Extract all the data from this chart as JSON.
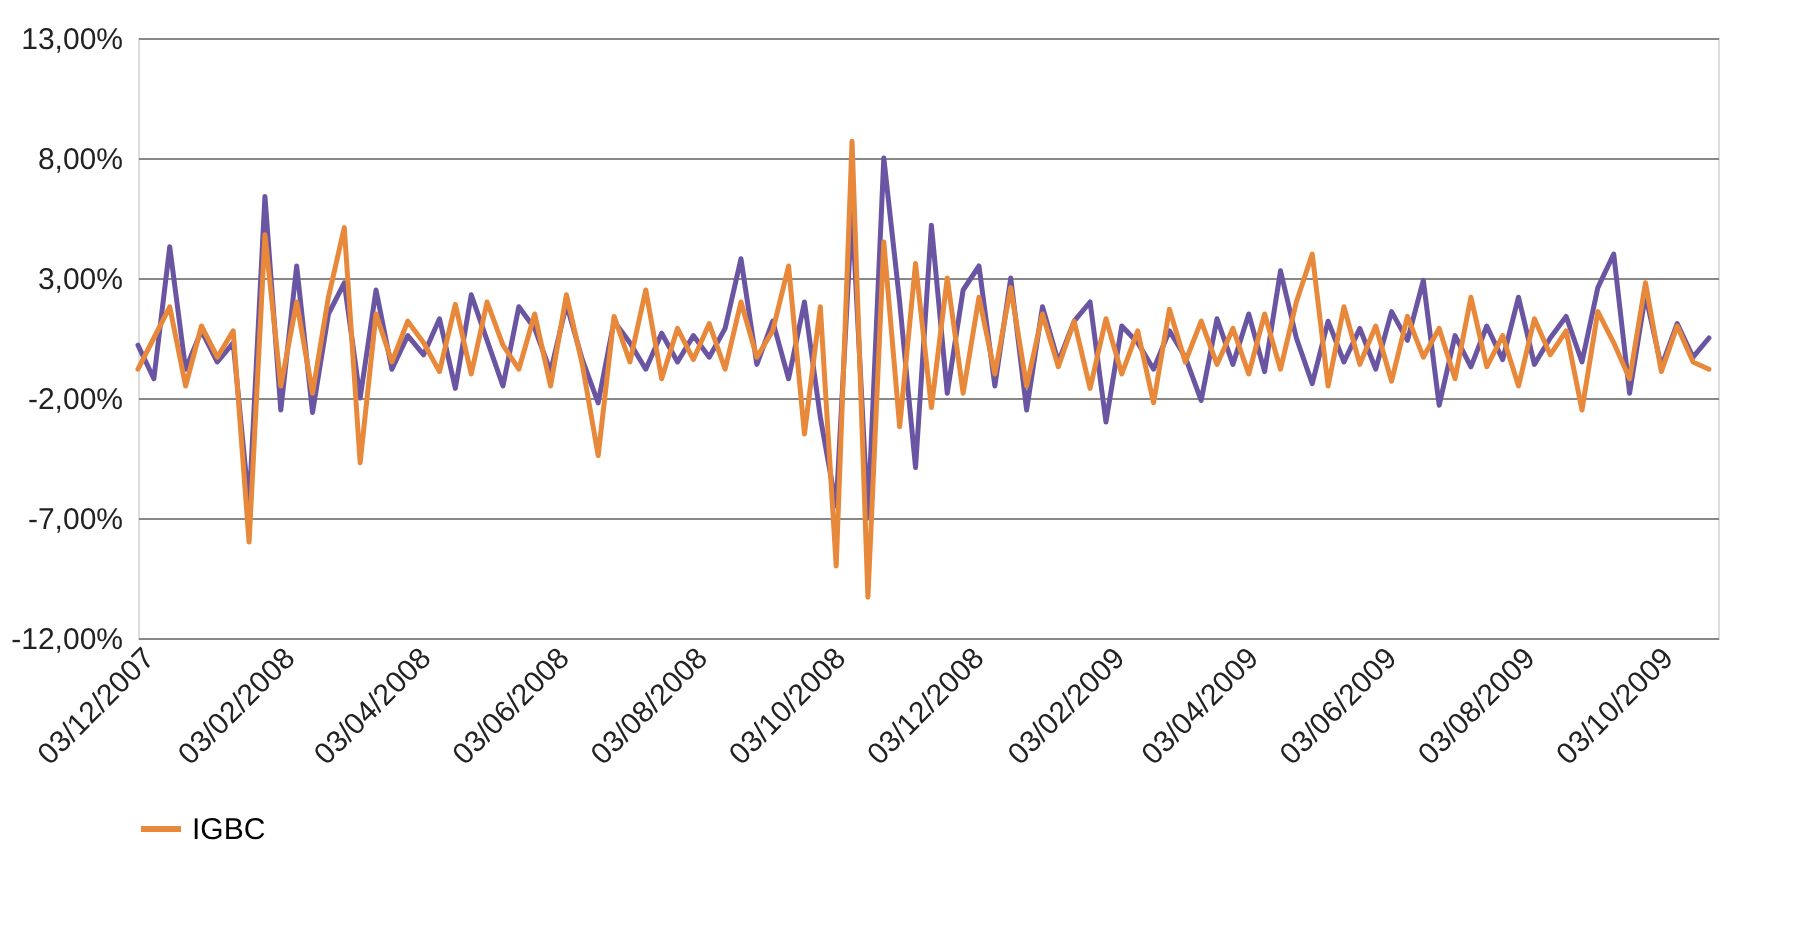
{
  "chart_data": {
    "type": "line",
    "x": [
      "2007-12-03",
      "2007-12-10",
      "2007-12-17",
      "2007-12-24",
      "2007-12-31",
      "2008-01-07",
      "2008-01-14",
      "2008-01-21",
      "2008-01-28",
      "2008-02-04",
      "2008-02-11",
      "2008-02-18",
      "2008-02-25",
      "2008-03-03",
      "2008-03-10",
      "2008-03-17",
      "2008-03-24",
      "2008-03-31",
      "2008-04-07",
      "2008-04-14",
      "2008-04-21",
      "2008-04-28",
      "2008-05-05",
      "2008-05-12",
      "2008-05-19",
      "2008-05-26",
      "2008-06-02",
      "2008-06-09",
      "2008-06-16",
      "2008-06-23",
      "2008-06-30",
      "2008-07-07",
      "2008-07-14",
      "2008-07-21",
      "2008-07-28",
      "2008-08-04",
      "2008-08-11",
      "2008-08-18",
      "2008-08-25",
      "2008-09-01",
      "2008-09-08",
      "2008-09-15",
      "2008-09-22",
      "2008-09-29",
      "2008-10-06",
      "2008-10-13",
      "2008-10-20",
      "2008-10-27",
      "2008-11-03",
      "2008-11-10",
      "2008-11-17",
      "2008-11-24",
      "2008-12-01",
      "2008-12-08",
      "2008-12-15",
      "2008-12-22",
      "2008-12-29",
      "2009-01-05",
      "2009-01-12",
      "2009-01-19",
      "2009-01-26",
      "2009-02-02",
      "2009-02-09",
      "2009-02-16",
      "2009-02-23",
      "2009-03-02",
      "2009-03-09",
      "2009-03-16",
      "2009-03-23",
      "2009-03-30",
      "2009-04-06",
      "2009-04-13",
      "2009-04-20",
      "2009-04-27",
      "2009-05-04",
      "2009-05-11",
      "2009-05-18",
      "2009-05-25",
      "2009-06-01",
      "2009-06-08",
      "2009-06-15",
      "2009-06-22",
      "2009-06-29",
      "2009-07-06",
      "2009-07-13",
      "2009-07-20",
      "2009-07-27",
      "2009-08-03",
      "2009-08-10",
      "2009-08-17",
      "2009-08-24",
      "2009-08-31",
      "2009-09-07",
      "2009-09-14",
      "2009-09-21",
      "2009-09-28",
      "2009-10-05",
      "2009-10-12",
      "2009-10-19",
      "2009-10-26"
    ],
    "series": [
      {
        "color": "#6a55a3",
        "values": [
          0.2,
          -1.2,
          4.3,
          -0.8,
          0.8,
          -0.5,
          0.3,
          -6.5,
          6.4,
          -2.5,
          3.5,
          -2.6,
          1.5,
          2.8,
          -2.0,
          2.5,
          -0.8,
          0.6,
          -0.2,
          1.3,
          -1.6,
          2.3,
          0.4,
          -1.5,
          1.8,
          0.9,
          -0.9,
          1.9,
          -0.4,
          -2.2,
          1.2,
          0.3,
          -0.8,
          0.7,
          -0.5,
          0.6,
          -0.3,
          0.9,
          3.8,
          -0.6,
          1.2,
          -1.2,
          2.0,
          -2.8,
          -6.5,
          5.8,
          -7.0,
          8.0,
          2.0,
          -4.9,
          5.2,
          -1.8,
          2.5,
          3.5,
          -1.5,
          3.0,
          -2.5,
          1.8,
          -0.5,
          1.2,
          2.0,
          -3.0,
          1.0,
          0.3,
          -0.8,
          0.8,
          -0.3,
          -2.1,
          1.3,
          -0.6,
          1.5,
          -0.9,
          3.3,
          0.5,
          -1.4,
          1.2,
          -0.5,
          0.9,
          -0.8,
          1.6,
          0.4,
          2.9,
          -2.3,
          0.6,
          -0.7,
          1.0,
          -0.4,
          2.2,
          -0.6,
          0.5,
          1.4,
          -0.5,
          2.6,
          4.0,
          -1.8,
          2.3,
          -0.7,
          1.1,
          -0.3,
          0.5
        ]
      },
      {
        "name": "IGBC",
        "color": "#e8883a",
        "values": [
          -0.8,
          0.5,
          1.8,
          -1.5,
          1.0,
          -0.3,
          0.8,
          -8.0,
          4.8,
          -1.5,
          2.0,
          -1.8,
          2.2,
          5.1,
          -4.7,
          1.5,
          -0.5,
          1.2,
          0.3,
          -0.9,
          1.9,
          -1.0,
          2.0,
          0.2,
          -0.8,
          1.5,
          -1.5,
          2.3,
          -0.6,
          -4.4,
          1.4,
          -0.5,
          2.5,
          -1.2,
          0.9,
          -0.4,
          1.1,
          -0.8,
          2.0,
          -0.3,
          0.8,
          3.5,
          -3.5,
          1.8,
          -9.0,
          8.7,
          -10.3,
          4.5,
          -3.2,
          3.6,
          -2.4,
          3.0,
          -1.8,
          2.2,
          -1.0,
          2.6,
          -1.5,
          1.5,
          -0.7,
          1.2,
          -1.6,
          1.3,
          -1.0,
          0.8,
          -2.2,
          1.7,
          -0.5,
          1.2,
          -0.6,
          0.9,
          -1.0,
          1.5,
          -0.8,
          2.0,
          4.0,
          -1.5,
          1.8,
          -0.6,
          1.0,
          -1.3,
          1.4,
          -0.3,
          0.9,
          -1.2,
          2.2,
          -0.7,
          0.6,
          -1.5,
          1.3,
          -0.2,
          0.8,
          -2.5,
          1.6,
          0.3,
          -1.2,
          2.8,
          -0.9,
          1.0,
          -0.5,
          -0.8
        ]
      }
    ],
    "xlim": [
      "2007-12-03",
      "2009-10-30"
    ],
    "xticks": [
      {
        "value": "2007-12-03",
        "label": "03/12/2007"
      },
      {
        "value": "2008-02-03",
        "label": "03/02/2008"
      },
      {
        "value": "2008-04-03",
        "label": "03/04/2008"
      },
      {
        "value": "2008-06-03",
        "label": "03/06/2008"
      },
      {
        "value": "2008-08-03",
        "label": "03/08/2008"
      },
      {
        "value": "2008-10-03",
        "label": "03/10/2008"
      },
      {
        "value": "2008-12-03",
        "label": "03/12/2008"
      },
      {
        "value": "2009-02-03",
        "label": "03/02/2009"
      },
      {
        "value": "2009-04-03",
        "label": "03/04/2009"
      },
      {
        "value": "2009-06-03",
        "label": "03/06/2009"
      },
      {
        "value": "2009-08-03",
        "label": "03/08/2009"
      },
      {
        "value": "2009-10-03",
        "label": "03/10/2009"
      }
    ],
    "ylim": [
      -12,
      13
    ],
    "yticks": [
      {
        "value": -12,
        "label": "-12,00%"
      },
      {
        "value": -7,
        "label": "-7,00%"
      },
      {
        "value": -2,
        "label": "-2,00%"
      },
      {
        "value": 3,
        "label": "3,00%"
      },
      {
        "value": 8,
        "label": "8,00%"
      },
      {
        "value": 13,
        "label": "13,00%"
      }
    ],
    "grid": "y",
    "legend": "bottom",
    "marker": "none",
    "line_style": "solid"
  }
}
